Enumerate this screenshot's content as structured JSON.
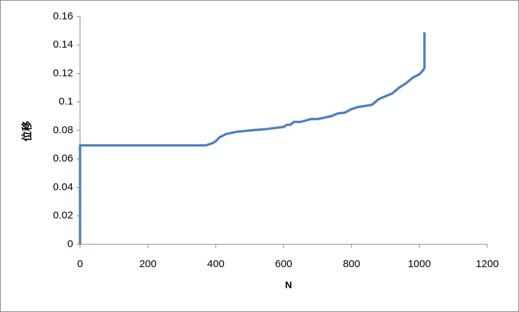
{
  "chart_data": {
    "type": "line",
    "xlabel": "N",
    "ylabel": "位移",
    "x": [
      0,
      0,
      370,
      390,
      400,
      410,
      430,
      460,
      500,
      550,
      600,
      610,
      620,
      630,
      650,
      680,
      700,
      740,
      760,
      780,
      800,
      820,
      860,
      880,
      920,
      940,
      960,
      980,
      1000,
      1010,
      1015,
      1015
    ],
    "values": [
      0,
      0.0695,
      0.0695,
      0.071,
      0.0725,
      0.075,
      0.0775,
      0.079,
      0.08,
      0.081,
      0.0825,
      0.084,
      0.084,
      0.086,
      0.086,
      0.088,
      0.088,
      0.09,
      0.092,
      0.0925,
      0.095,
      0.0965,
      0.098,
      0.102,
      0.106,
      0.11,
      0.113,
      0.117,
      0.1195,
      0.122,
      0.124,
      0.149
    ],
    "color": "#4f81bd",
    "xlim": [
      0,
      1200
    ],
    "xticks": [
      0,
      200,
      400,
      600,
      800,
      1000,
      1200
    ],
    "ylim": [
      0,
      0.16
    ],
    "yticks": [
      0,
      0.02,
      0.04,
      0.06,
      0.08,
      0.1,
      0.12,
      0.14,
      0.16
    ],
    "grid": false
  }
}
